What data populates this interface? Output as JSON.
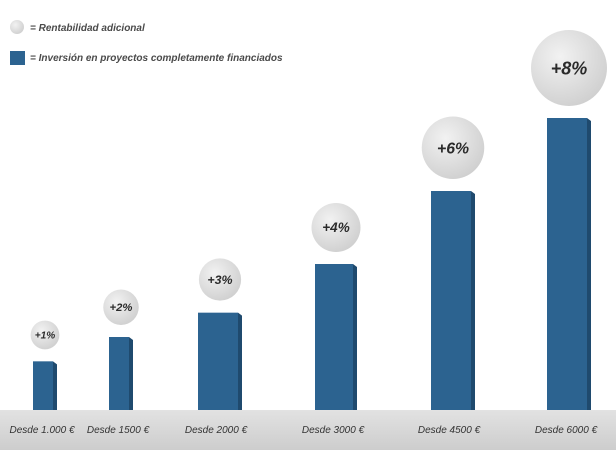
{
  "chart_data": {
    "type": "bar",
    "title": "",
    "categories": [
      "Desde 1.000 €",
      "Desde 1500  €",
      "Desde 2000 €",
      "Desde 3000 €",
      "Desde 4500 €",
      "Desde 6000 €"
    ],
    "series": [
      {
        "name": "= Inversión en proyectos completamente financiados",
        "values": [
          1000,
          1500,
          2000,
          3000,
          4500,
          6000
        ]
      }
    ],
    "extra_return_series": {
      "name": "= Rentabilidad adicional",
      "labels": [
        "+1%",
        "+2%",
        "+3%",
        "+4%",
        "+6%",
        "+8%"
      ],
      "values": [
        1,
        2,
        3,
        4,
        6,
        8
      ]
    },
    "xlabel": "",
    "ylabel": "",
    "ylim": [
      0,
      6000
    ],
    "grid": false,
    "legend_position": "top-left"
  },
  "colors": {
    "bar": "#2c6390",
    "bar_side": "#1f4a6e",
    "bubble": "#e4e4e4",
    "bubble_shade": "#d3d3d3",
    "axis_band": "#d6d6d6"
  }
}
